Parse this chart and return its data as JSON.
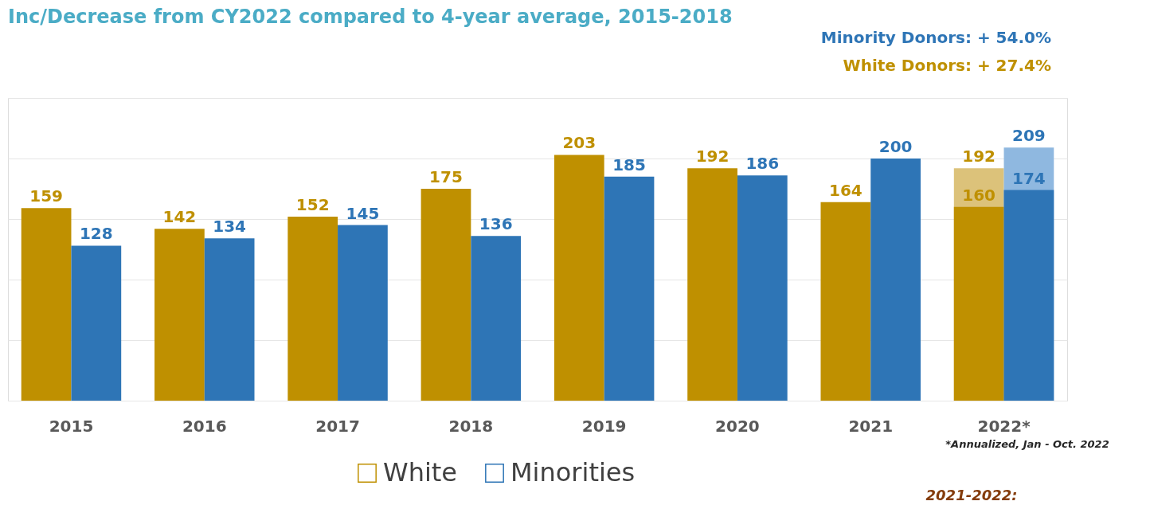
{
  "chart_data": {
    "type": "bar",
    "subtitle": "Inc/Decrease from CY2022 compared to 4-year average, 2015-2018",
    "categories": [
      "2015",
      "2016",
      "2017",
      "2018",
      "2019",
      "2020",
      "2021",
      "2022*"
    ],
    "series": [
      {
        "color": "#dcc27a",
        "values": [
          null,
          null,
          null,
          null,
          null,
          null,
          null,
          192
        ],
        "value_labels": [
          null,
          null,
          null,
          null,
          null,
          null,
          null,
          "192"
        ]
      },
      {
        "color": "#8fb8e0",
        "values": [
          null,
          null,
          null,
          null,
          null,
          null,
          null,
          209
        ],
        "value_labels": [
          null,
          null,
          null,
          null,
          null,
          null,
          null,
          "209"
        ]
      },
      {
        "name": "White",
        "color": "#bf9000",
        "values": [
          159,
          142,
          152,
          175,
          203,
          192,
          164,
          160
        ],
        "value_labels": [
          "159",
          "142",
          "152",
          "175",
          "203",
          "192",
          "164",
          "160"
        ]
      },
      {
        "name": "Minorities",
        "color": "#2e75b6",
        "values": [
          128,
          134,
          145,
          136,
          185,
          186,
          200,
          174
        ],
        "value_labels": [
          "128",
          "134",
          "145",
          "136",
          "185",
          "186",
          "200",
          "174"
        ]
      }
    ],
    "ylim": [
      0,
      250
    ],
    "yticks": [
      {
        "value": 0,
        "label": null
      },
      {
        "value": 50,
        "label": null
      },
      {
        "value": 100,
        "label": null
      },
      {
        "value": 150,
        "label": null
      },
      {
        "value": 200,
        "label": null
      },
      {
        "value": 250,
        "label": null
      }
    ],
    "tick_labels": "x",
    "grid": "y",
    "legend": "bottom",
    "annotations": [
      "Minority Donors: + 54.0%",
      "White Donors: + 27.4%",
      "*Annualized, Jan - Oct. 2022",
      "2021-2022:"
    ]
  }
}
